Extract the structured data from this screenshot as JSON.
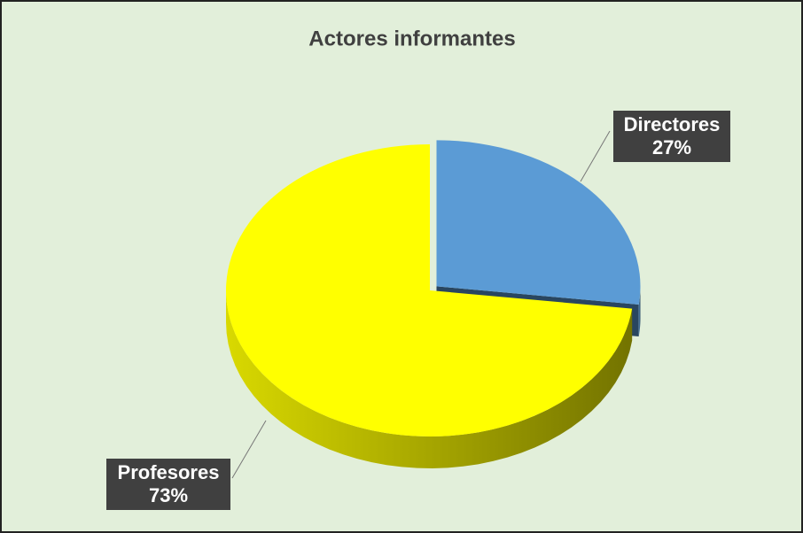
{
  "chart_data": {
    "type": "pie",
    "title": "Actores informantes",
    "categories": [
      "Directores",
      "Profesores"
    ],
    "values": [
      27,
      73
    ],
    "value_labels": [
      "27%",
      "73%"
    ],
    "colors": [
      "#5b9bd5",
      "#ffff00"
    ]
  }
}
